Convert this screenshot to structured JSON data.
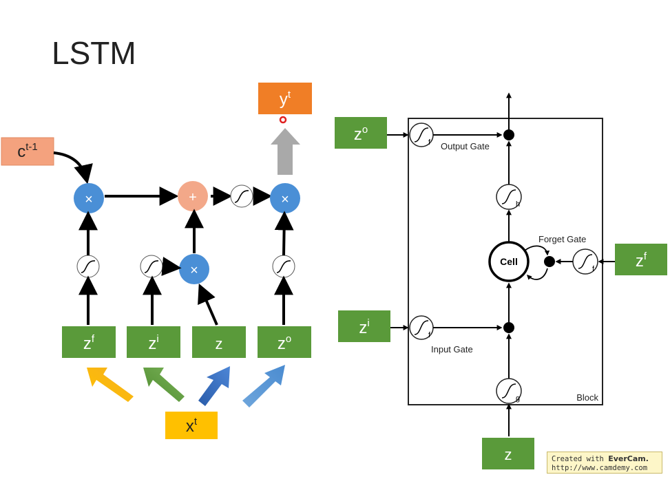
{
  "title": "LSTM",
  "left": {
    "c_prev": {
      "base": "c",
      "sup": "t-1"
    },
    "y_out": {
      "base": "y",
      "sup": "t"
    },
    "x_in": {
      "base": "x",
      "sup": "t"
    },
    "inputs": [
      {
        "base": "z",
        "sup": "f"
      },
      {
        "base": "z",
        "sup": "i"
      },
      {
        "base": "z",
        "sup": ""
      },
      {
        "base": "z",
        "sup": "o"
      }
    ],
    "mul_symbol": "×",
    "add_symbol": "+"
  },
  "right": {
    "inputs": {
      "zo": {
        "base": "z",
        "sup": "o"
      },
      "zi": {
        "base": "z",
        "sup": "i"
      },
      "zf": {
        "base": "z",
        "sup": "f"
      },
      "z": {
        "base": "z",
        "sup": ""
      }
    },
    "labels": {
      "output_gate": "Output Gate",
      "input_gate": "Input Gate",
      "forget_gate": "Forget Gate",
      "cell": "Cell",
      "block": "Block"
    },
    "act": {
      "f": "f",
      "h": "h",
      "g": "g"
    }
  },
  "watermark": {
    "prefix": "Created with ",
    "brand": "EverCam.",
    "url": "http://www.camdemy.com"
  },
  "colors": {
    "green": "#5a9a3a",
    "orange_box": "#f4a27e",
    "orange_y": "#f07e26",
    "blue": "#4a8fd6",
    "peach": "#f3a889",
    "yellow": "#ffc000"
  }
}
